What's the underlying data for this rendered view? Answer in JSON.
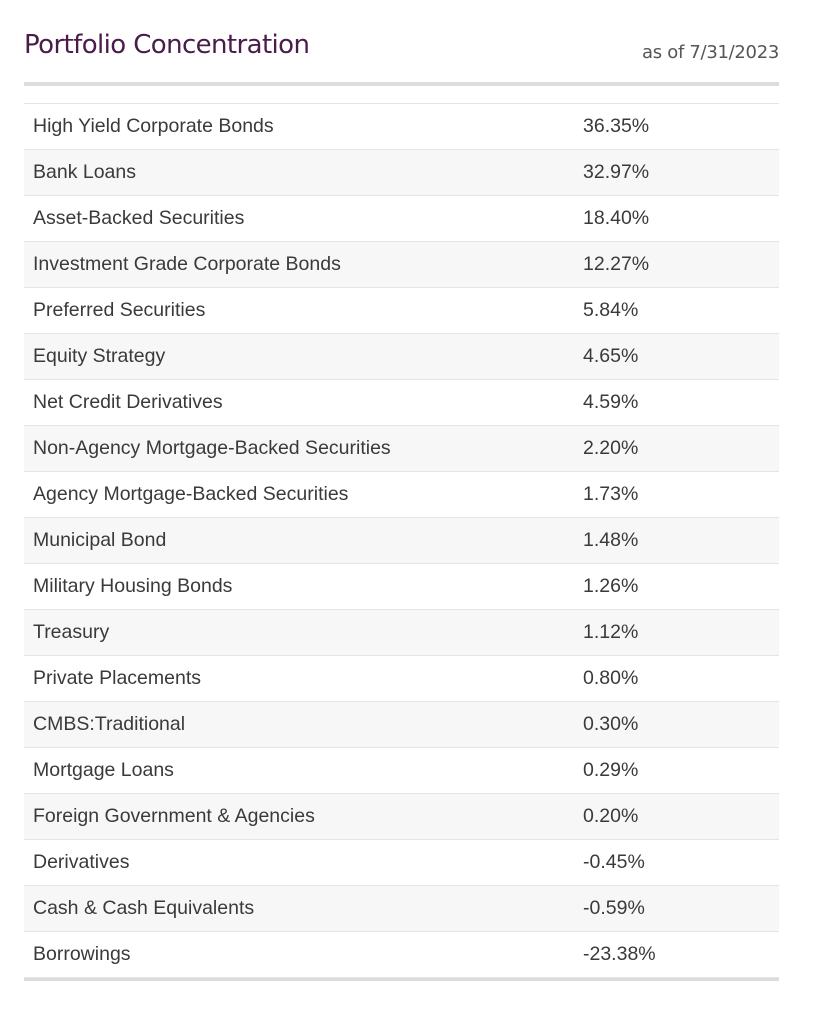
{
  "title": "Portfolio Concentration",
  "as_of": "as of 7/31/2023",
  "rows": [
    {
      "name": "High Yield Corporate Bonds",
      "value": "36.35%"
    },
    {
      "name": "Bank Loans",
      "value": "32.97%"
    },
    {
      "name": "Asset-Backed Securities",
      "value": "18.40%"
    },
    {
      "name": "Investment Grade Corporate Bonds",
      "value": "12.27%"
    },
    {
      "name": "Preferred Securities",
      "value": "5.84%"
    },
    {
      "name": "Equity Strategy",
      "value": "4.65%"
    },
    {
      "name": "Net Credit Derivatives",
      "value": "4.59%"
    },
    {
      "name": "Non-Agency Mortgage-Backed Securities",
      "value": "2.20%"
    },
    {
      "name": "Agency Mortgage-Backed Securities",
      "value": "1.73%"
    },
    {
      "name": "Municipal Bond",
      "value": "1.48%"
    },
    {
      "name": "Military Housing Bonds",
      "value": "1.26%"
    },
    {
      "name": "Treasury",
      "value": "1.12%"
    },
    {
      "name": "Private Placements",
      "value": "0.80%"
    },
    {
      "name": "CMBS:Traditional",
      "value": "0.30%"
    },
    {
      "name": "Mortgage Loans",
      "value": "0.29%"
    },
    {
      "name": "Foreign Government & Agencies",
      "value": "0.20%"
    },
    {
      "name": "Derivatives",
      "value": "-0.45%"
    },
    {
      "name": "Cash & Cash Equivalents",
      "value": "-0.59%"
    },
    {
      "name": "Borrowings",
      "value": "-23.38%"
    }
  ]
}
